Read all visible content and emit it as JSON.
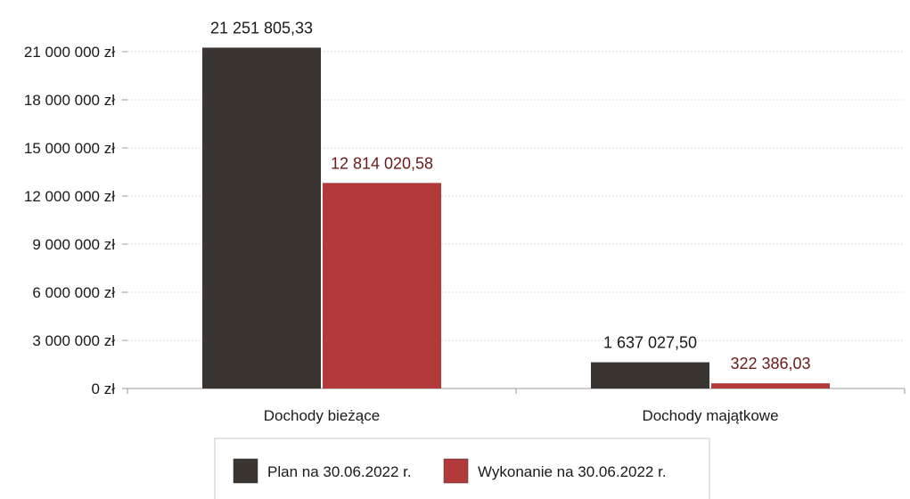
{
  "chart_data": {
    "type": "bar",
    "categories": [
      "Dochody bieżące",
      "Dochody majątkowe"
    ],
    "series": [
      {
        "name": "Plan na 30.06.2022 r.",
        "values": [
          21251805.33,
          1637027.5
        ],
        "labels": [
          "21 251 805,33",
          "1 637 027,50"
        ],
        "color": "#3b3532",
        "label_color": "#1a1a1a"
      },
      {
        "name": "Wykonanie na 30.06.2022 r.",
        "values": [
          12814020.58,
          322386.03
        ],
        "labels": [
          "12 814 020,58",
          "322 386,03"
        ],
        "color": "#b23a3a",
        "label_color": "#6b1a1a"
      }
    ],
    "ylim": [
      0,
      21000000
    ],
    "yticks": [
      0,
      3000000,
      6000000,
      9000000,
      12000000,
      15000000,
      18000000,
      21000000
    ],
    "ytick_labels": [
      "0 zł",
      "3 000 000 zł",
      "6 000 000 zł",
      "9 000 000 zł",
      "12 000 000 zł",
      "15 000 000 zł",
      "18 000 000 zł",
      "21 000 000 zł"
    ],
    "grid": true,
    "legend_position": "bottom-center",
    "title": "",
    "xlabel": "",
    "ylabel": ""
  }
}
